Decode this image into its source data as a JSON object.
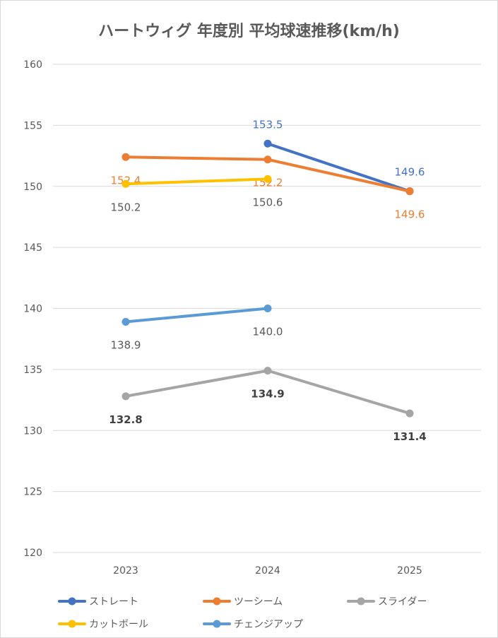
{
  "chart_data": {
    "type": "line",
    "title": "ハートウィグ 年度別 平均球速推移(km/h)",
    "categories": [
      "2023",
      "2024",
      "2025"
    ],
    "ylim": [
      120,
      160
    ],
    "yticks": [
      120,
      125,
      130,
      135,
      140,
      145,
      150,
      155,
      160
    ],
    "ytick_labels": [
      "120",
      "125",
      "130",
      "135",
      "140",
      "145",
      "150",
      "155",
      "160"
    ],
    "grid": true,
    "legend_position": "bottom",
    "series": [
      {
        "name": "ストレート",
        "color": "#4472C4",
        "values": [
          null,
          153.5,
          149.6
        ],
        "labels": [
          null,
          "153.5",
          "149.6"
        ],
        "label_color": "#4472C4",
        "label_pos": "above",
        "bold": false
      },
      {
        "name": "ツーシーム",
        "color": "#ED7D31",
        "values": [
          152.4,
          152.2,
          149.6
        ],
        "labels": [
          "152.4",
          "152.2",
          "149.6"
        ],
        "label_color": "#ED7D31",
        "label_pos": "below",
        "bold": false
      },
      {
        "name": "スライダー",
        "color": "#A5A5A5",
        "values": [
          132.8,
          134.9,
          131.4
        ],
        "labels": [
          "132.8",
          "134.9",
          "131.4"
        ],
        "label_color": "#404040",
        "label_pos": "below",
        "bold": true
      },
      {
        "name": "カットボール",
        "color": "#FFC000",
        "values": [
          150.2,
          150.6,
          null
        ],
        "labels": [
          "150.2",
          "150.6",
          null
        ],
        "label_color": "#595959",
        "label_pos": "below",
        "bold": false
      },
      {
        "name": "チェンジアップ",
        "color": "#5B9BD5",
        "values": [
          138.9,
          140.0,
          null
        ],
        "labels": [
          "138.9",
          "140.0",
          null
        ],
        "label_color": "#595959",
        "label_pos": "below",
        "bold": false
      }
    ]
  }
}
